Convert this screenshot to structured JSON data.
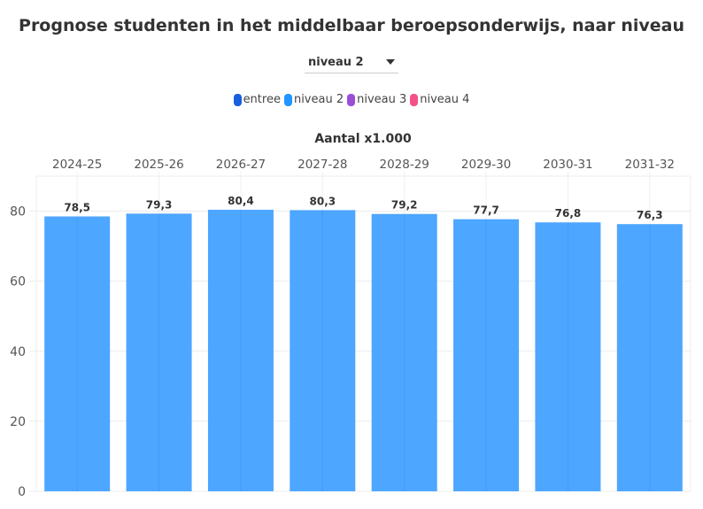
{
  "chart_data": {
    "type": "bar",
    "title": "Prognose studenten in het middelbaar beroepsonderwijs, naar niveau",
    "xlabel": "Aantal x1.000",
    "ylabel": "",
    "categories": [
      "2024-25",
      "2025-26",
      "2026-27",
      "2027-28",
      "2028-29",
      "2029-30",
      "2030-31",
      "2031-32"
    ],
    "values": [
      78.5,
      79.3,
      80.4,
      80.3,
      79.2,
      77.7,
      76.8,
      76.3
    ],
    "labels": [
      "78,5",
      "79,3",
      "80,4",
      "80,3",
      "79,2",
      "77,7",
      "76,8",
      "76,3"
    ],
    "ylim": [
      0,
      90
    ],
    "yticks": [
      0,
      20,
      40,
      60,
      80
    ],
    "grid": true,
    "bar_color": "#4da6ff",
    "legend": [
      {
        "name": "entree",
        "color": "#1a5ee0"
      },
      {
        "name": "niveau 2",
        "color": "#2196ff"
      },
      {
        "name": "niveau 3",
        "color": "#9b4fd6"
      },
      {
        "name": "niveau 4",
        "color": "#f4508a"
      }
    ],
    "legend_position": "top"
  },
  "dropdown": {
    "selected": "niveau 2"
  }
}
